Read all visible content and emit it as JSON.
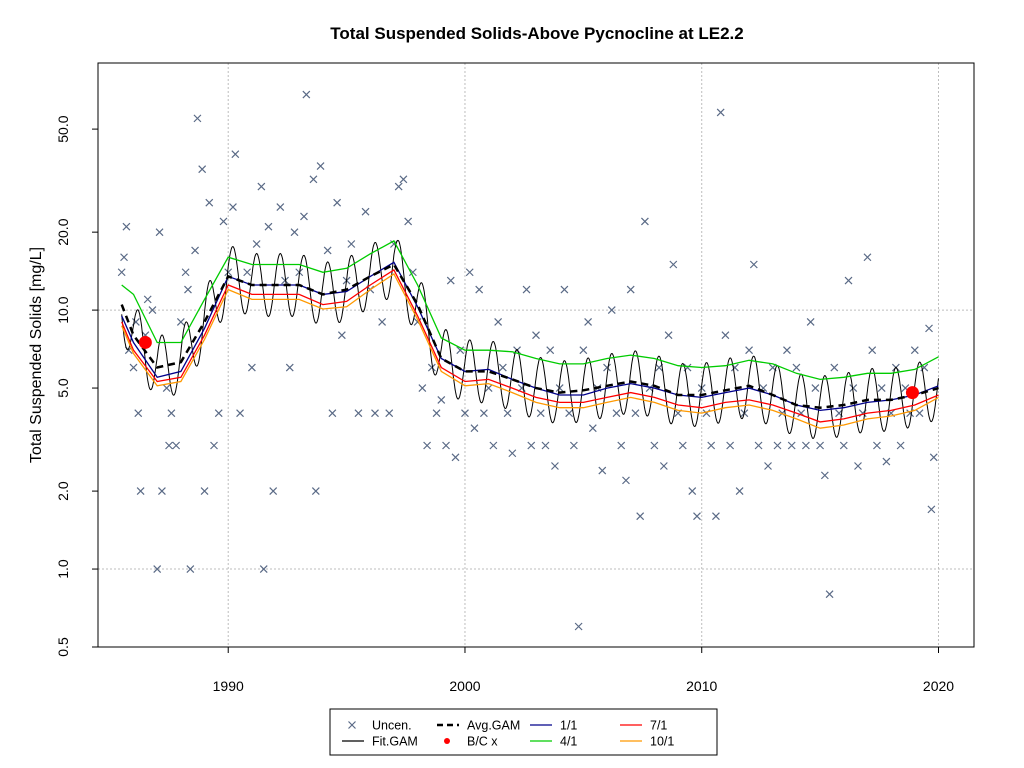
{
  "chart_data": {
    "type": "scatter",
    "title": "Total Suspended Solids-Above Pycnocline at LE2.2",
    "xlabel": "",
    "ylabel": "Total Suspended Solids [mg/L]",
    "xlim": [
      1984.5,
      2021.5
    ],
    "ylim": [
      0.5,
      90
    ],
    "y_scale": "log",
    "grid": true,
    "legend_placement": "bottom-center",
    "x_ticks": [
      1990,
      2000,
      2010,
      2020
    ],
    "x_tick_labels": [
      "1990",
      "2000",
      "2010",
      "2020"
    ],
    "y_ticks": [
      0.5,
      1.0,
      2.0,
      5.0,
      10.0,
      20.0,
      50.0
    ],
    "y_tick_labels": [
      "0.5",
      "1.0",
      "2.0",
      "5.0",
      "10.0",
      "20.0",
      "50.0"
    ],
    "colors": {
      "uncen": "#5a6a86",
      "fit_gam": "#000000",
      "avg_gam": "#000000",
      "bc": "#ff0000",
      "s_1_1": "#00008b",
      "s_4_1": "#00cc00",
      "s_7_1": "#ff0000",
      "s_10_1": "#ff9900"
    },
    "legend": [
      {
        "key": "uncen",
        "label": "Uncen.",
        "style": "x"
      },
      {
        "key": "avg_gam",
        "label": "Avg.GAM",
        "style": "dash"
      },
      {
        "key": "s_1_1",
        "label": "1/1",
        "style": "line"
      },
      {
        "key": "s_7_1",
        "label": "7/1",
        "style": "line"
      },
      {
        "key": "fit_gam",
        "label": "Fit.GAM",
        "style": "line"
      },
      {
        "key": "bc",
        "label": "B/C x",
        "style": "dot"
      },
      {
        "key": "s_4_1",
        "label": "4/1",
        "style": "line"
      },
      {
        "key": "s_10_1",
        "label": "10/1",
        "style": "line"
      }
    ],
    "uncen_points": [
      [
        1985.5,
        14
      ],
      [
        1985.6,
        16
      ],
      [
        1985.7,
        21
      ],
      [
        1985.8,
        7
      ],
      [
        1986.0,
        6
      ],
      [
        1986.1,
        9
      ],
      [
        1986.2,
        4
      ],
      [
        1986.3,
        2
      ],
      [
        1986.5,
        8
      ],
      [
        1986.6,
        11
      ],
      [
        1986.8,
        10
      ],
      [
        1987.0,
        1.0
      ],
      [
        1987.1,
        20
      ],
      [
        1987.2,
        2
      ],
      [
        1987.4,
        5
      ],
      [
        1987.5,
        3
      ],
      [
        1987.6,
        4
      ],
      [
        1987.8,
        3
      ],
      [
        1988.0,
        9
      ],
      [
        1988.2,
        14
      ],
      [
        1988.3,
        12
      ],
      [
        1988.4,
        1.0
      ],
      [
        1988.6,
        17
      ],
      [
        1988.7,
        55
      ],
      [
        1988.9,
        35
      ],
      [
        1989.0,
        2
      ],
      [
        1989.2,
        26
      ],
      [
        1989.4,
        3
      ],
      [
        1989.6,
        4
      ],
      [
        1989.8,
        22
      ],
      [
        1990.0,
        14
      ],
      [
        1990.2,
        25
      ],
      [
        1990.3,
        40
      ],
      [
        1990.5,
        4
      ],
      [
        1990.8,
        14
      ],
      [
        1991.0,
        6
      ],
      [
        1991.2,
        18
      ],
      [
        1991.4,
        30
      ],
      [
        1991.5,
        1.0
      ],
      [
        1991.7,
        21
      ],
      [
        1991.9,
        2
      ],
      [
        1992.2,
        25
      ],
      [
        1992.4,
        13
      ],
      [
        1992.6,
        6
      ],
      [
        1992.8,
        20
      ],
      [
        1993.0,
        14
      ],
      [
        1993.2,
        23
      ],
      [
        1993.3,
        68
      ],
      [
        1993.6,
        32
      ],
      [
        1993.7,
        2
      ],
      [
        1993.9,
        36
      ],
      [
        1994.2,
        17
      ],
      [
        1994.4,
        4
      ],
      [
        1994.6,
        26
      ],
      [
        1994.8,
        8
      ],
      [
        1995.0,
        13
      ],
      [
        1995.2,
        18
      ],
      [
        1995.5,
        4
      ],
      [
        1995.8,
        24
      ],
      [
        1996.0,
        12
      ],
      [
        1996.2,
        4
      ],
      [
        1996.5,
        9
      ],
      [
        1996.8,
        4
      ],
      [
        1997.0,
        18
      ],
      [
        1997.2,
        30
      ],
      [
        1997.4,
        32
      ],
      [
        1997.6,
        22
      ],
      [
        1997.8,
        14
      ],
      [
        1998.0,
        9
      ],
      [
        1998.2,
        5
      ],
      [
        1998.4,
        3
      ],
      [
        1998.6,
        6
      ],
      [
        1998.8,
        4
      ],
      [
        1999.0,
        4.5
      ],
      [
        1999.2,
        3
      ],
      [
        1999.4,
        13
      ],
      [
        1999.6,
        2.7
      ],
      [
        1999.8,
        7
      ],
      [
        2000.0,
        4
      ],
      [
        2000.2,
        14
      ],
      [
        2000.4,
        3.5
      ],
      [
        2000.6,
        12
      ],
      [
        2000.8,
        4
      ],
      [
        2001.0,
        5
      ],
      [
        2001.2,
        3
      ],
      [
        2001.4,
        9
      ],
      [
        2001.6,
        6
      ],
      [
        2001.8,
        4
      ],
      [
        2002.0,
        2.8
      ],
      [
        2002.2,
        7
      ],
      [
        2002.4,
        5
      ],
      [
        2002.6,
        12
      ],
      [
        2002.8,
        3
      ],
      [
        2003.0,
        8
      ],
      [
        2003.2,
        4
      ],
      [
        2003.4,
        3
      ],
      [
        2003.6,
        7
      ],
      [
        2003.8,
        2.5
      ],
      [
        2004.0,
        5
      ],
      [
        2004.2,
        12
      ],
      [
        2004.4,
        4
      ],
      [
        2004.6,
        3
      ],
      [
        2004.8,
        0.6
      ],
      [
        2005.0,
        7
      ],
      [
        2005.2,
        9
      ],
      [
        2005.4,
        3.5
      ],
      [
        2005.6,
        5
      ],
      [
        2005.8,
        2.4
      ],
      [
        2006.0,
        6
      ],
      [
        2006.2,
        10
      ],
      [
        2006.4,
        4
      ],
      [
        2006.6,
        3
      ],
      [
        2006.8,
        2.2
      ],
      [
        2007.0,
        12
      ],
      [
        2007.2,
        4
      ],
      [
        2007.4,
        1.6
      ],
      [
        2007.6,
        22
      ],
      [
        2007.8,
        5
      ],
      [
        2008.0,
        3
      ],
      [
        2008.2,
        6
      ],
      [
        2008.4,
        2.5
      ],
      [
        2008.6,
        8
      ],
      [
        2008.8,
        15
      ],
      [
        2009.0,
        4
      ],
      [
        2009.2,
        3
      ],
      [
        2009.4,
        6
      ],
      [
        2009.6,
        2
      ],
      [
        2009.8,
        1.6
      ],
      [
        2010.0,
        5
      ],
      [
        2010.2,
        4
      ],
      [
        2010.4,
        3
      ],
      [
        2010.6,
        1.6
      ],
      [
        2010.8,
        58
      ],
      [
        2011.0,
        8
      ],
      [
        2011.2,
        3
      ],
      [
        2011.4,
        6
      ],
      [
        2011.6,
        2
      ],
      [
        2011.8,
        4
      ],
      [
        2012.0,
        7
      ],
      [
        2012.2,
        15
      ],
      [
        2012.4,
        3
      ],
      [
        2012.6,
        5
      ],
      [
        2012.8,
        2.5
      ],
      [
        2013.0,
        6
      ],
      [
        2013.2,
        3
      ],
      [
        2013.4,
        4
      ],
      [
        2013.6,
        7
      ],
      [
        2013.8,
        3
      ],
      [
        2014.0,
        6
      ],
      [
        2014.2,
        4
      ],
      [
        2014.4,
        3
      ],
      [
        2014.6,
        9
      ],
      [
        2014.8,
        5
      ],
      [
        2015.0,
        3
      ],
      [
        2015.2,
        2.3
      ],
      [
        2015.4,
        0.8
      ],
      [
        2015.6,
        6
      ],
      [
        2015.8,
        4
      ],
      [
        2016.0,
        3
      ],
      [
        2016.2,
        13
      ],
      [
        2016.4,
        5
      ],
      [
        2016.6,
        2.5
      ],
      [
        2016.8,
        4
      ],
      [
        2017.0,
        16
      ],
      [
        2017.2,
        7
      ],
      [
        2017.4,
        3
      ],
      [
        2017.6,
        5
      ],
      [
        2017.8,
        2.6
      ],
      [
        2018.0,
        4
      ],
      [
        2018.2,
        6
      ],
      [
        2018.4,
        3
      ],
      [
        2018.6,
        5
      ],
      [
        2018.8,
        4
      ],
      [
        2019.0,
        7
      ],
      [
        2019.2,
        4
      ],
      [
        2019.4,
        6
      ],
      [
        2019.6,
        8.5
      ],
      [
        2019.7,
        1.7
      ],
      [
        2019.8,
        2.7
      ]
    ],
    "bc_points": [
      [
        1986.5,
        7.5
      ],
      [
        2018.9,
        4.8
      ]
    ],
    "avg_gam": {
      "x": [
        1985.5,
        1986,
        1987,
        1988,
        1989,
        1990,
        1991,
        1992,
        1993,
        1994,
        1995,
        1996,
        1997,
        1998,
        1999,
        2000,
        2001,
        2002,
        2003,
        2004,
        2005,
        2006,
        2007,
        2008,
        2009,
        2010,
        2011,
        2012,
        2013,
        2014,
        2015,
        2016,
        2017,
        2018,
        2019,
        2020
      ],
      "y": [
        10.5,
        8,
        6,
        6.3,
        9,
        13.5,
        12.5,
        12.5,
        12.5,
        11.5,
        12,
        13.5,
        15,
        10.5,
        6.5,
        5.8,
        5.8,
        5.4,
        5.0,
        4.8,
        4.9,
        5.1,
        5.3,
        5.1,
        4.7,
        4.7,
        4.9,
        5.1,
        4.7,
        4.3,
        4.2,
        4.3,
        4.5,
        4.5,
        4.7,
        5.0
      ]
    },
    "series": [
      {
        "key": "s_4_1",
        "name": "4/1",
        "x": [
          1985.5,
          1986,
          1987,
          1988,
          1989,
          1990,
          1991,
          1992,
          1993,
          1994,
          1995,
          1996,
          1997,
          1998,
          1999,
          2000,
          2001,
          2002,
          2003,
          2004,
          2005,
          2006,
          2007,
          2008,
          2009,
          2010,
          2011,
          2012,
          2013,
          2014,
          2015,
          2016,
          2017,
          2018,
          2019,
          2020
        ],
        "y": [
          12.5,
          11.5,
          7.5,
          7.5,
          11,
          16,
          15,
          15,
          15,
          14,
          14.5,
          16.5,
          18.5,
          12.5,
          7.8,
          7,
          7,
          6.9,
          6.5,
          6.2,
          6.2,
          6.5,
          6.7,
          6.5,
          6.1,
          6.0,
          6.1,
          6.4,
          6.2,
          5.7,
          5.4,
          5.5,
          5.7,
          5.7,
          5.9,
          6.6
        ]
      },
      {
        "key": "s_1_1",
        "name": "1/1",
        "x": [
          1985.5,
          1986,
          1987,
          1988,
          1989,
          1990,
          1991,
          1992,
          1993,
          1994,
          1995,
          1996,
          1997,
          1998,
          1999,
          2000,
          2001,
          2002,
          2003,
          2004,
          2005,
          2006,
          2007,
          2008,
          2009,
          2010,
          2011,
          2012,
          2013,
          2014,
          2015,
          2016,
          2017,
          2018,
          2019,
          2020
        ],
        "y": [
          9.5,
          7.5,
          5.5,
          5.8,
          8.5,
          13.5,
          12.5,
          12.5,
          12.5,
          11.5,
          11.8,
          13.5,
          15.3,
          10.3,
          6.5,
          5.8,
          5.9,
          5.4,
          5.0,
          4.7,
          4.7,
          5.0,
          5.2,
          5.0,
          4.7,
          4.6,
          4.8,
          5.0,
          4.7,
          4.3,
          4.1,
          4.2,
          4.4,
          4.5,
          4.7,
          5.1
        ]
      },
      {
        "key": "s_7_1",
        "name": "7/1",
        "x": [
          1985.5,
          1986,
          1987,
          1988,
          1989,
          1990,
          1991,
          1992,
          1993,
          1994,
          1995,
          1996,
          1997,
          1998,
          1999,
          2000,
          2001,
          2002,
          2003,
          2004,
          2005,
          2006,
          2007,
          2008,
          2009,
          2010,
          2011,
          2012,
          2013,
          2014,
          2015,
          2016,
          2017,
          2018,
          2019,
          2020
        ],
        "y": [
          9,
          7,
          5.3,
          5.5,
          8,
          12.5,
          11.5,
          11.5,
          11.5,
          10.5,
          10.8,
          12.5,
          14.3,
          9.5,
          6,
          5.3,
          5.4,
          5.0,
          4.6,
          4.4,
          4.4,
          4.6,
          4.8,
          4.6,
          4.3,
          4.2,
          4.4,
          4.5,
          4.3,
          4.0,
          3.7,
          3.8,
          4.0,
          4.1,
          4.3,
          4.7
        ]
      },
      {
        "key": "s_10_1",
        "name": "10/1",
        "x": [
          1985.5,
          1986,
          1987,
          1988,
          1989,
          1990,
          1991,
          1992,
          1993,
          1994,
          1995,
          1996,
          1997,
          1998,
          1999,
          2000,
          2001,
          2002,
          2003,
          2004,
          2005,
          2006,
          2007,
          2008,
          2009,
          2010,
          2011,
          2012,
          2013,
          2014,
          2015,
          2016,
          2017,
          2018,
          2019,
          2020
        ],
        "y": [
          8.7,
          6.8,
          5.1,
          5.3,
          7.7,
          12,
          11,
          11,
          11,
          10.1,
          10.3,
          12,
          13.8,
          9.2,
          5.8,
          5.1,
          5.2,
          4.8,
          4.4,
          4.2,
          4.2,
          4.4,
          4.6,
          4.4,
          4.1,
          4.0,
          4.2,
          4.3,
          4.1,
          3.8,
          3.5,
          3.6,
          3.8,
          3.9,
          4.1,
          4.6
        ]
      }
    ]
  }
}
